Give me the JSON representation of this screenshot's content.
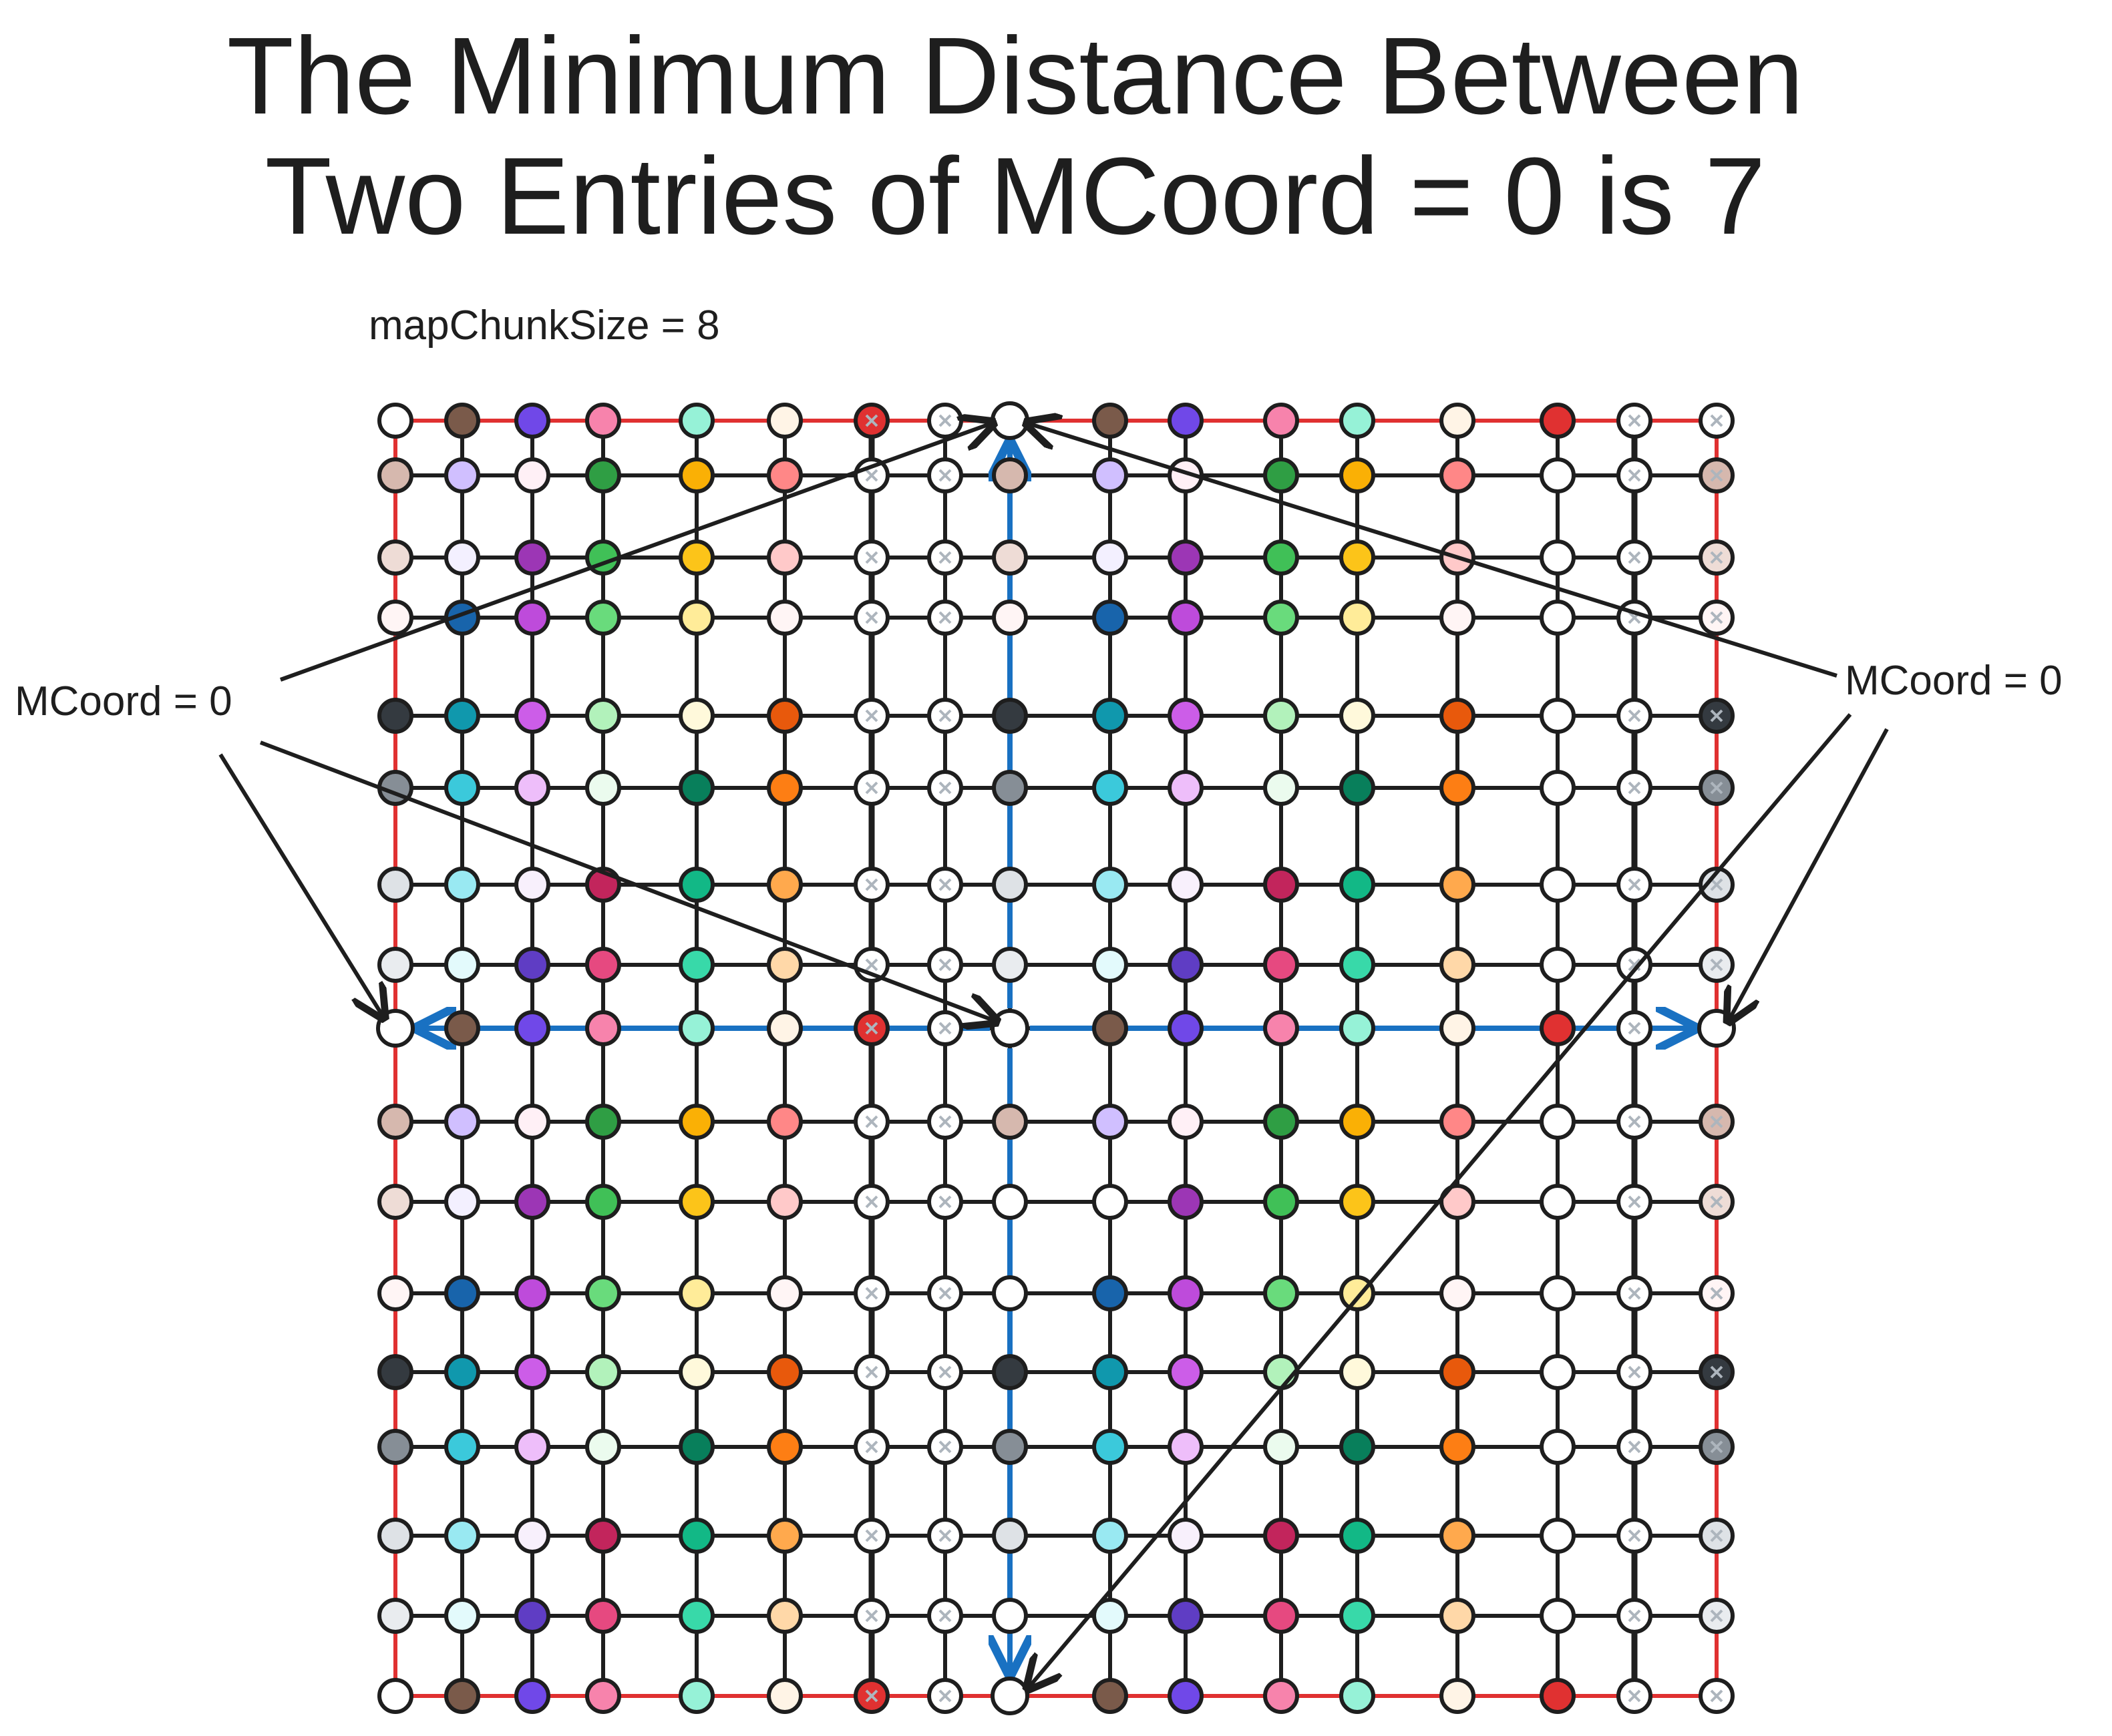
{
  "title": {
    "line1": "The Minimum Distance Between",
    "line2": "Two Entries of MCoord = 0 is 7"
  },
  "subtitle": "mapChunkSize = 8",
  "annotations": {
    "left_label": "MCoord = 0",
    "right_label": "MCoord = 0"
  },
  "grid": {
    "columns": 17,
    "rows": 17,
    "highlighted_column": 8,
    "highlighted_row": 8,
    "hollow_column": 7,
    "hollow_columns_light": [
      6,
      7,
      15,
      16
    ],
    "mcoord_zero_cells": [
      [
        0,
        8
      ],
      [
        8,
        0
      ],
      [
        8,
        8
      ],
      [
        8,
        16
      ],
      [
        16,
        8
      ]
    ]
  },
  "colors": {
    "border": "#e03131",
    "grid_line": "#1e1e1e",
    "axis_arrow": "#1971c2",
    "annotation_arrow": "#1e1e1e",
    "node_fill_default": "#ffffff",
    "palette_rows": [
      [
        "#ffffff",
        "#7a5a4a",
        "#7048e8",
        "#f783ac",
        "#96f2d7",
        "#fff4e6",
        "#e03131",
        "#ffffff",
        "#ffffff",
        "#7a5a4a",
        "#7048e8",
        "#f783ac",
        "#96f2d7",
        "#fff4e6",
        "#e03131",
        "#ffffff",
        "#ffffff"
      ],
      [
        "#d6b8ae",
        "#d0bfff",
        "#fff0f6",
        "#2f9e44",
        "#fab005",
        "#ff8787",
        "#ffffff",
        "#ffffff",
        "#d6b8ae",
        "#d0bfff",
        "#fff0f6",
        "#2f9e44",
        "#fab005",
        "#ff8787",
        "#ffffff",
        "#ffffff",
        "#d6b8ae"
      ],
      [
        "#eedcd6",
        "#f3f0ff",
        "#9c36b5",
        "#40c057",
        "#fcc419",
        "#ffc9c9",
        "#ffffff",
        "#ffffff",
        "#eedcd6",
        "#f3f0ff",
        "#9c36b5",
        "#40c057",
        "#fcc419",
        "#ffc9c9",
        "#ffffff",
        "#ffffff",
        "#eedcd6"
      ],
      [
        "#fff5f5",
        "#1864ab",
        "#be4bdb",
        "#69db7c",
        "#ffec99",
        "#fff5f5",
        "#ffffff",
        "#ffffff",
        "#fff5f5",
        "#1864ab",
        "#be4bdb",
        "#69db7c",
        "#ffec99",
        "#fff5f5",
        "#ffffff",
        "#ffffff",
        "#fff5f5"
      ],
      [
        "#343a40",
        "#1098ad",
        "#cc5de8",
        "#b2f2bb",
        "#fff9db",
        "#e8590c",
        "#ffffff",
        "#ffffff",
        "#343a40",
        "#1098ad",
        "#cc5de8",
        "#b2f2bb",
        "#fff9db",
        "#e8590c",
        "#ffffff",
        "#ffffff",
        "#343a40"
      ],
      [
        "#868e96",
        "#3bc9db",
        "#eebefa",
        "#ebfbee",
        "#087f5b",
        "#fd7e14",
        "#ffffff",
        "#ffffff",
        "#868e96",
        "#3bc9db",
        "#eebefa",
        "#ebfbee",
        "#087f5b",
        "#fd7e14",
        "#ffffff",
        "#ffffff",
        "#868e96"
      ],
      [
        "#dee2e6",
        "#99e9f2",
        "#f8f0fc",
        "#c2255c",
        "#12b886",
        "#ffa94d",
        "#ffffff",
        "#ffffff",
        "#dee2e6",
        "#99e9f2",
        "#f8f0fc",
        "#c2255c",
        "#12b886",
        "#ffa94d",
        "#ffffff",
        "#ffffff",
        "#dee2e6"
      ],
      [
        "#e9ecef",
        "#e3fafc",
        "#5f3dc4",
        "#e64980",
        "#38d9a9",
        "#ffd8a8",
        "#ffffff",
        "#ffffff",
        "#e9ecef",
        "#e3fafc",
        "#5f3dc4",
        "#e64980",
        "#38d9a9",
        "#ffd8a8",
        "#ffffff",
        "#ffffff",
        "#e9ecef"
      ],
      [
        "#ffffff",
        "#7a5a4a",
        "#7048e8",
        "#f783ac",
        "#96f2d7",
        "#fff4e6",
        "#e03131",
        "#ffffff",
        "#ffffff",
        "#7a5a4a",
        "#7048e8",
        "#f783ac",
        "#96f2d7",
        "#fff4e6",
        "#e03131",
        "#ffffff",
        "#ffffff"
      ],
      [
        "#d6b8ae",
        "#d0bfff",
        "#fff0f6",
        "#2f9e44",
        "#fab005",
        "#ff8787",
        "#ffffff",
        "#ffffff",
        "#d6b8ae",
        "#d0bfff",
        "#fff0f6",
        "#2f9e44",
        "#fab005",
        "#ff8787",
        "#ffffff",
        "#ffffff",
        "#d6b8ae"
      ],
      [
        "#eedcd6",
        "#f3f0ff",
        "#9c36b5",
        "#40c057",
        "#fcc419",
        "#ffc9c9",
        "#ffffff",
        "#ffffff",
        "#ffffff",
        "#ffffff",
        "#9c36b5",
        "#40c057",
        "#fcc419",
        "#ffc9c9",
        "#ffffff",
        "#ffffff",
        "#eedcd6"
      ],
      [
        "#fff5f5",
        "#1864ab",
        "#be4bdb",
        "#69db7c",
        "#ffec99",
        "#fff5f5",
        "#ffffff",
        "#ffffff",
        "#ffffff",
        "#1864ab",
        "#be4bdb",
        "#69db7c",
        "#ffec99",
        "#fff5f5",
        "#ffffff",
        "#ffffff",
        "#fff5f5"
      ],
      [
        "#343a40",
        "#1098ad",
        "#cc5de8",
        "#b2f2bb",
        "#fff9db",
        "#e8590c",
        "#ffffff",
        "#ffffff",
        "#343a40",
        "#1098ad",
        "#cc5de8",
        "#b2f2bb",
        "#fff9db",
        "#e8590c",
        "#ffffff",
        "#ffffff",
        "#343a40"
      ],
      [
        "#868e96",
        "#3bc9db",
        "#eebefa",
        "#ebfbee",
        "#087f5b",
        "#fd7e14",
        "#ffffff",
        "#ffffff",
        "#868e96",
        "#3bc9db",
        "#eebefa",
        "#ebfbee",
        "#087f5b",
        "#fd7e14",
        "#ffffff",
        "#ffffff",
        "#868e96"
      ],
      [
        "#dee2e6",
        "#99e9f2",
        "#f8f0fc",
        "#c2255c",
        "#12b886",
        "#ffa94d",
        "#ffffff",
        "#ffffff",
        "#dee2e6",
        "#99e9f2",
        "#f8f0fc",
        "#c2255c",
        "#12b886",
        "#ffa94d",
        "#ffffff",
        "#ffffff",
        "#dee2e6"
      ],
      [
        "#e9ecef",
        "#e3fafc",
        "#5f3dc4",
        "#e64980",
        "#38d9a9",
        "#ffd8a8",
        "#ffffff",
        "#ffffff",
        "#ffffff",
        "#e3fafc",
        "#5f3dc4",
        "#e64980",
        "#38d9a9",
        "#ffd8a8",
        "#ffffff",
        "#ffffff",
        "#e9ecef"
      ],
      [
        "#ffffff",
        "#7a5a4a",
        "#7048e8",
        "#f783ac",
        "#96f2d7",
        "#fff4e6",
        "#e03131",
        "#ffffff",
        "#ffffff",
        "#7a5a4a",
        "#7048e8",
        "#f783ac",
        "#96f2d7",
        "#fff4e6",
        "#e03131",
        "#ffffff",
        "#ffffff"
      ]
    ]
  }
}
